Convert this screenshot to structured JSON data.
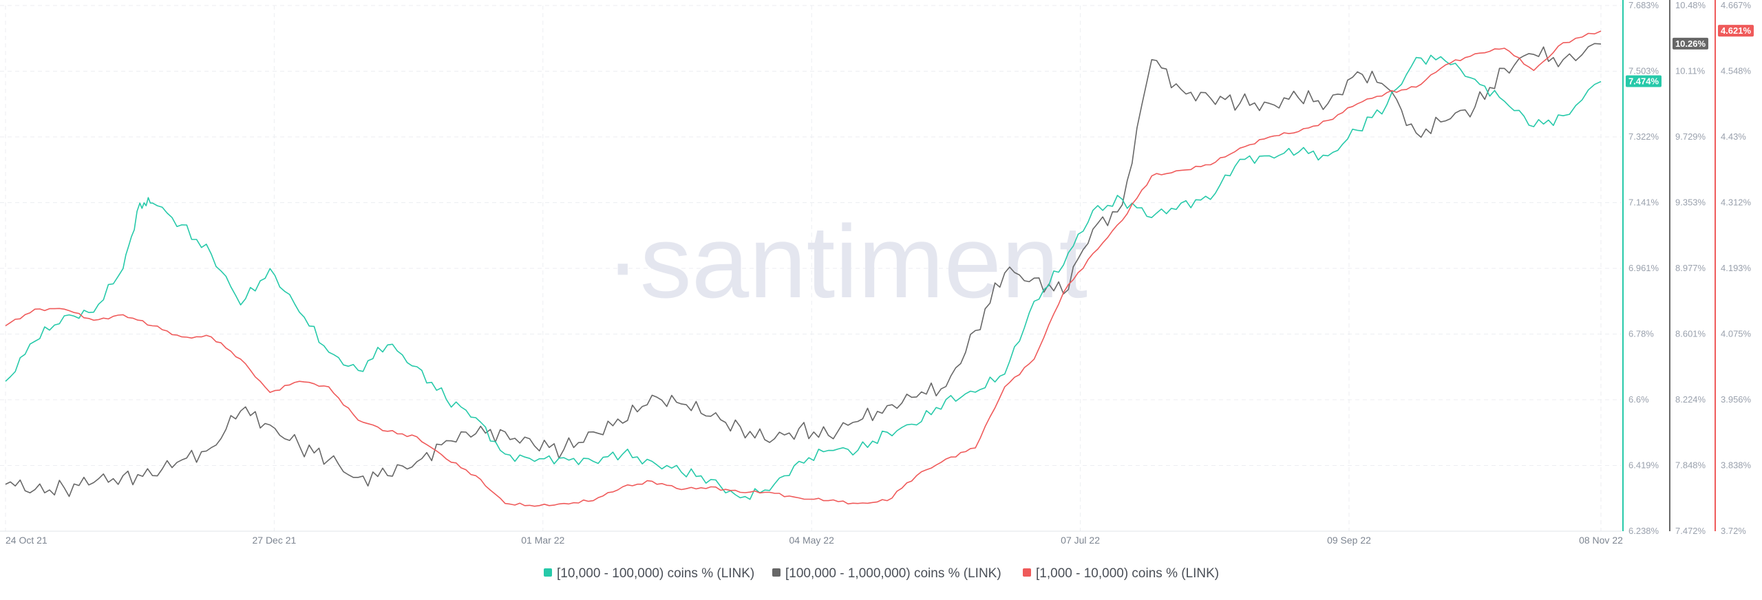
{
  "watermark": "·santiment",
  "x_axis": {
    "ticks": [
      "24 Oct 21",
      "27 Dec 21",
      "01 Mar 22",
      "04 May 22",
      "07 Jul 22",
      "09 Sep 22",
      "08 Nov 22"
    ]
  },
  "axes": {
    "teal": {
      "color": "#26c9a9",
      "ticks": [
        "7.683%",
        "7.503%",
        "7.322%",
        "7.141%",
        "6.961%",
        "6.78%",
        "6.6%",
        "6.419%",
        "6.238%"
      ],
      "badge": "7.474%"
    },
    "gray": {
      "color": "#676767",
      "ticks": [
        "10.48%",
        "10.11%",
        "9.729%",
        "9.353%",
        "8.977%",
        "8.601%",
        "8.224%",
        "7.848%",
        "7.472%"
      ],
      "badge": "10.26%"
    },
    "red": {
      "color": "#ef5a5a",
      "ticks": [
        "4.667%",
        "4.548%",
        "4.43%",
        "4.312%",
        "4.193%",
        "4.075%",
        "3.956%",
        "3.838%",
        "3.72%"
      ],
      "badge": "4.621%"
    }
  },
  "legend": [
    {
      "label": "[10,000 - 100,000) coins % (LINK)",
      "color": "#26c9a9"
    },
    {
      "label": "[100,000  - 1,000,000) coins % (LINK)",
      "color": "#676767"
    },
    {
      "label": "[1,000 - 10,000) coins % (LINK)",
      "color": "#ef5a5a"
    }
  ],
  "chart_data": {
    "type": "line",
    "x_range": [
      "2021-10-24",
      "2022-11-08"
    ],
    "grid": true,
    "legend_placement": "bottom",
    "series": [
      {
        "name": "[10,000 - 100,000) coins % (LINK)",
        "color": "#26c9a9",
        "axis": "teal",
        "ylim": [
          6.238,
          7.683
        ],
        "points": [
          [
            "2021-10-24",
            6.65
          ],
          [
            "2021-10-31",
            6.76
          ],
          [
            "2021-11-07",
            6.83
          ],
          [
            "2021-11-14",
            6.84
          ],
          [
            "2021-11-21",
            6.96
          ],
          [
            "2021-11-25",
            7.14
          ],
          [
            "2021-11-28",
            7.14
          ],
          [
            "2021-12-05",
            7.08
          ],
          [
            "2021-12-12",
            7.0
          ],
          [
            "2021-12-19",
            6.86
          ],
          [
            "2021-12-26",
            6.96
          ],
          [
            "2022-01-02",
            6.84
          ],
          [
            "2022-01-09",
            6.73
          ],
          [
            "2022-01-16",
            6.68
          ],
          [
            "2022-01-23",
            6.75
          ],
          [
            "2022-01-30",
            6.69
          ],
          [
            "2022-02-06",
            6.6
          ],
          [
            "2022-02-13",
            6.55
          ],
          [
            "2022-02-20",
            6.45
          ],
          [
            "2022-02-27",
            6.43
          ],
          [
            "2022-03-06",
            6.44
          ],
          [
            "2022-03-13",
            6.43
          ],
          [
            "2022-03-20",
            6.45
          ],
          [
            "2022-03-27",
            6.43
          ],
          [
            "2022-04-03",
            6.4
          ],
          [
            "2022-04-10",
            6.38
          ],
          [
            "2022-04-17",
            6.33
          ],
          [
            "2022-04-24",
            6.35
          ],
          [
            "2022-05-01",
            6.43
          ],
          [
            "2022-05-08",
            6.46
          ],
          [
            "2022-05-15",
            6.46
          ],
          [
            "2022-05-22",
            6.51
          ],
          [
            "2022-05-29",
            6.53
          ],
          [
            "2022-06-05",
            6.6
          ],
          [
            "2022-06-12",
            6.62
          ],
          [
            "2022-06-19",
            6.67
          ],
          [
            "2022-06-26",
            6.87
          ],
          [
            "2022-07-03",
            6.97
          ],
          [
            "2022-07-10",
            7.12
          ],
          [
            "2022-07-17",
            7.15
          ],
          [
            "2022-07-24",
            7.1
          ],
          [
            "2022-07-31",
            7.14
          ],
          [
            "2022-08-07",
            7.15
          ],
          [
            "2022-08-14",
            7.26
          ],
          [
            "2022-08-21",
            7.27
          ],
          [
            "2022-08-28",
            7.28
          ],
          [
            "2022-09-04",
            7.27
          ],
          [
            "2022-09-11",
            7.34
          ],
          [
            "2022-09-18",
            7.41
          ],
          [
            "2022-09-25",
            7.54
          ],
          [
            "2022-10-02",
            7.53
          ],
          [
            "2022-10-09",
            7.48
          ],
          [
            "2022-10-16",
            7.42
          ],
          [
            "2022-10-23",
            7.35
          ],
          [
            "2022-10-30",
            7.38
          ],
          [
            "2022-11-08",
            7.474
          ]
        ]
      },
      {
        "name": "[100,000  - 1,000,000) coins % (LINK)",
        "color": "#676767",
        "axis": "gray",
        "ylim": [
          7.472,
          10.48
        ],
        "points": [
          [
            "2021-10-24",
            7.74
          ],
          [
            "2021-10-31",
            7.71
          ],
          [
            "2021-11-07",
            7.72
          ],
          [
            "2021-11-14",
            7.75
          ],
          [
            "2021-11-21",
            7.79
          ],
          [
            "2021-11-28",
            7.79
          ],
          [
            "2021-12-05",
            7.88
          ],
          [
            "2021-12-12",
            7.95
          ],
          [
            "2021-12-19",
            8.16
          ],
          [
            "2021-12-26",
            8.08
          ],
          [
            "2022-01-02",
            7.96
          ],
          [
            "2022-01-09",
            7.88
          ],
          [
            "2022-01-16",
            7.78
          ],
          [
            "2022-01-23",
            7.79
          ],
          [
            "2022-01-30",
            7.87
          ],
          [
            "2022-02-06",
            7.99
          ],
          [
            "2022-02-13",
            8.03
          ],
          [
            "2022-02-20",
            8.04
          ],
          [
            "2022-02-27",
            7.96
          ],
          [
            "2022-03-06",
            7.94
          ],
          [
            "2022-03-13",
            8.04
          ],
          [
            "2022-03-20",
            8.09
          ],
          [
            "2022-03-27",
            8.25
          ],
          [
            "2022-04-03",
            8.2
          ],
          [
            "2022-04-10",
            8.13
          ],
          [
            "2022-04-17",
            8.07
          ],
          [
            "2022-04-24",
            7.98
          ],
          [
            "2022-05-01",
            8.06
          ],
          [
            "2022-05-08",
            8.02
          ],
          [
            "2022-05-15",
            8.1
          ],
          [
            "2022-05-22",
            8.19
          ],
          [
            "2022-05-29",
            8.24
          ],
          [
            "2022-06-05",
            8.3
          ],
          [
            "2022-06-12",
            8.62
          ],
          [
            "2022-06-19",
            8.95
          ],
          [
            "2022-06-26",
            8.92
          ],
          [
            "2022-07-03",
            8.83
          ],
          [
            "2022-07-10",
            9.2
          ],
          [
            "2022-07-17",
            9.34
          ],
          [
            "2022-07-24",
            10.17
          ],
          [
            "2022-07-31",
            10.0
          ],
          [
            "2022-08-07",
            9.95
          ],
          [
            "2022-08-14",
            9.92
          ],
          [
            "2022-08-21",
            9.92
          ],
          [
            "2022-08-28",
            9.95
          ],
          [
            "2022-09-04",
            9.92
          ],
          [
            "2022-09-11",
            10.1
          ],
          [
            "2022-09-18",
            10.01
          ],
          [
            "2022-09-25",
            9.75
          ],
          [
            "2022-10-02",
            9.82
          ],
          [
            "2022-10-09",
            9.9
          ],
          [
            "2022-10-16",
            10.12
          ],
          [
            "2022-10-23",
            10.2
          ],
          [
            "2022-10-30",
            10.17
          ],
          [
            "2022-11-08",
            10.26
          ]
        ]
      },
      {
        "name": "[1,000 - 10,000) coins % (LINK)",
        "color": "#ef5a5a",
        "axis": "red",
        "ylim": [
          3.72,
          4.667
        ],
        "points": [
          [
            "2021-10-24",
            4.09
          ],
          [
            "2021-10-31",
            4.12
          ],
          [
            "2021-11-07",
            4.12
          ],
          [
            "2021-11-14",
            4.1
          ],
          [
            "2021-11-21",
            4.11
          ],
          [
            "2021-11-28",
            4.09
          ],
          [
            "2021-12-05",
            4.07
          ],
          [
            "2021-12-12",
            4.07
          ],
          [
            "2021-12-19",
            4.03
          ],
          [
            "2021-12-26",
            3.97
          ],
          [
            "2022-01-02",
            3.99
          ],
          [
            "2022-01-09",
            3.98
          ],
          [
            "2022-01-16",
            3.92
          ],
          [
            "2022-01-23",
            3.9
          ],
          [
            "2022-01-30",
            3.89
          ],
          [
            "2022-02-06",
            3.85
          ],
          [
            "2022-02-13",
            3.82
          ],
          [
            "2022-02-20",
            3.77
          ],
          [
            "2022-02-27",
            3.765
          ],
          [
            "2022-03-06",
            3.77
          ],
          [
            "2022-03-13",
            3.775
          ],
          [
            "2022-03-20",
            3.8
          ],
          [
            "2022-03-27",
            3.81
          ],
          [
            "2022-04-03",
            3.795
          ],
          [
            "2022-04-10",
            3.8
          ],
          [
            "2022-04-17",
            3.79
          ],
          [
            "2022-04-24",
            3.79
          ],
          [
            "2022-05-01",
            3.78
          ],
          [
            "2022-05-08",
            3.775
          ],
          [
            "2022-05-15",
            3.77
          ],
          [
            "2022-05-22",
            3.775
          ],
          [
            "2022-05-29",
            3.82
          ],
          [
            "2022-06-05",
            3.85
          ],
          [
            "2022-06-12",
            3.87
          ],
          [
            "2022-06-19",
            3.98
          ],
          [
            "2022-06-26",
            4.03
          ],
          [
            "2022-07-03",
            4.15
          ],
          [
            "2022-07-10",
            4.22
          ],
          [
            "2022-07-17",
            4.28
          ],
          [
            "2022-07-24",
            4.36
          ],
          [
            "2022-07-31",
            4.37
          ],
          [
            "2022-08-07",
            4.38
          ],
          [
            "2022-08-14",
            4.41
          ],
          [
            "2022-08-21",
            4.43
          ],
          [
            "2022-08-28",
            4.44
          ],
          [
            "2022-09-04",
            4.46
          ],
          [
            "2022-09-11",
            4.49
          ],
          [
            "2022-09-18",
            4.51
          ],
          [
            "2022-09-25",
            4.52
          ],
          [
            "2022-10-02",
            4.56
          ],
          [
            "2022-10-09",
            4.58
          ],
          [
            "2022-10-16",
            4.59
          ],
          [
            "2022-10-23",
            4.55
          ],
          [
            "2022-10-30",
            4.6
          ],
          [
            "2022-11-08",
            4.621
          ]
        ]
      }
    ]
  }
}
